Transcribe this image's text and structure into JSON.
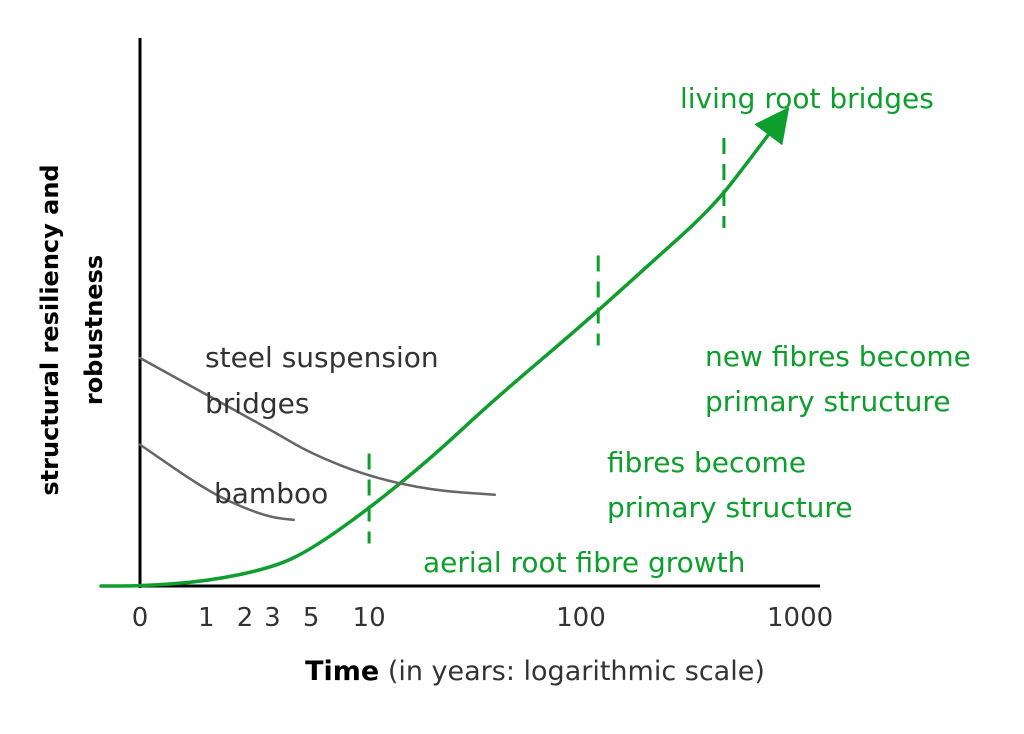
{
  "chart_data": {
    "type": "line",
    "title": "",
    "ylabel_line1": "structural resiliency and",
    "ylabel_line2": "robustness",
    "xlabel_bold": "Time",
    "xlabel_rest": " (in years: logarithmic scale)",
    "x_scale": "log",
    "x_ticks": [
      "0",
      "1",
      "2",
      "3",
      "5",
      "10",
      "100",
      "1000"
    ],
    "grid": false,
    "colors": {
      "axis": "#000000",
      "green": "#0e9e2e",
      "gray": "#666666",
      "label": "#333333"
    },
    "series": [
      {
        "name": "living root bridges",
        "color": "#0e9e2e",
        "points": [
          [
            -0.3,
            0.0
          ],
          [
            0,
            0.0
          ],
          [
            1,
            0.01
          ],
          [
            3,
            0.04
          ],
          [
            5,
            0.08
          ],
          [
            10,
            0.17
          ],
          [
            20,
            0.28
          ],
          [
            40,
            0.41
          ],
          [
            100,
            0.57
          ],
          [
            200,
            0.7
          ],
          [
            400,
            0.83
          ],
          [
            600,
            0.94
          ],
          [
            800,
            1.02
          ]
        ]
      },
      {
        "name": "steel suspension bridges",
        "color": "#666666",
        "points": [
          [
            0,
            0.5
          ],
          [
            1,
            0.42
          ],
          [
            3,
            0.34
          ],
          [
            5,
            0.29
          ],
          [
            10,
            0.24
          ],
          [
            20,
            0.21
          ],
          [
            40,
            0.2
          ]
        ]
      },
      {
        "name": "bamboo",
        "color": "#666666",
        "points": [
          [
            0,
            0.31
          ],
          [
            1,
            0.21
          ],
          [
            2,
            0.17
          ],
          [
            3,
            0.15
          ],
          [
            4,
            0.145
          ]
        ]
      }
    ],
    "annotations": [
      {
        "text": "aerial root fibre growth",
        "x": 10
      },
      {
        "text_line1": "fibres become",
        "text_line2": "primary structure",
        "x": 120
      },
      {
        "text_line1": "new fibres become",
        "text_line2": "primary structure",
        "x": 450
      }
    ],
    "labels": {
      "living": "living root bridges",
      "steel_line1": "steel suspension",
      "steel_line2": "bridges",
      "bamboo": "bamboo"
    }
  }
}
